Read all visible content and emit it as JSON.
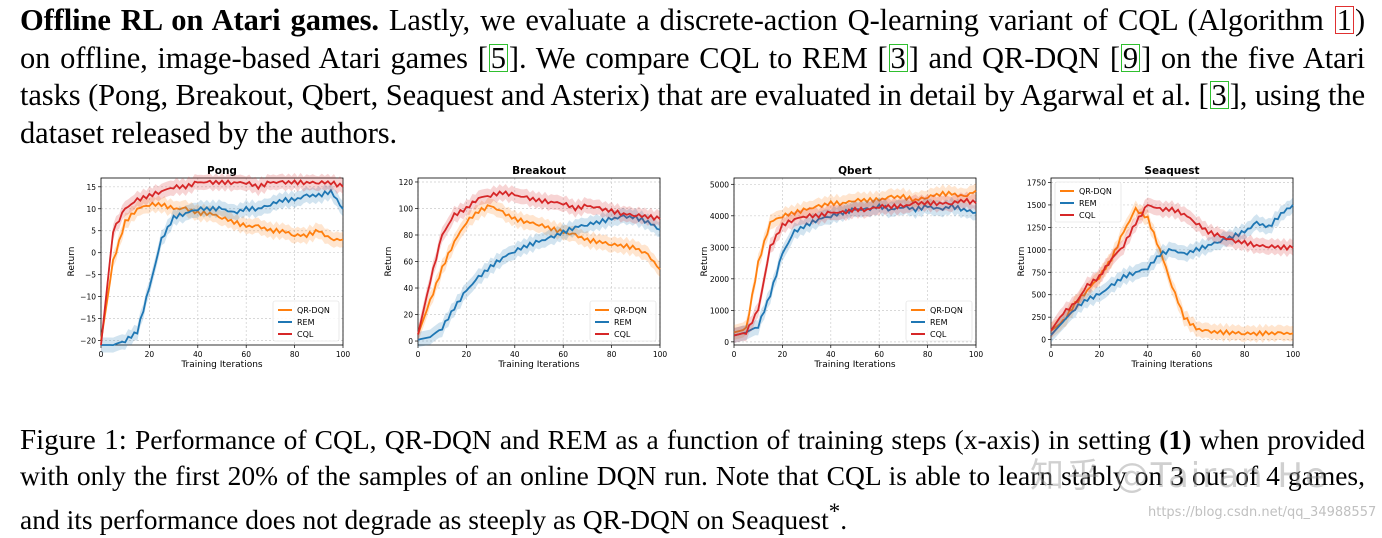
{
  "paragraph": {
    "heading": "Offline RL on Atari games.",
    "s1": "Lastly, we evaluate a discrete-action Q-learning variant of CQL (Algorithm",
    "c1": "1",
    "s2": ") on offline, image-based Atari games [",
    "c2": "5",
    "s3": "]. We compare CQL to REM [",
    "c3": "3",
    "s4": "] and QR-DQN [",
    "c4": "9",
    "s5": "] on the five Atari tasks (Pong, Breakout, Qbert, Seaquest and Asterix) that are evaluated in detail by Agarwal et al. [",
    "c5": "3",
    "s6": "], using the dataset released by the authors."
  },
  "caption": {
    "label": "Figure 1:",
    "t1": "Performance of CQL, QR-DQN and REM as a function of training steps (x-axis) in setting",
    "setting": "(1)",
    "t2": "when provided with only the first 20% of the samples of an online DQN run. Note that CQL is able to learn stably on 3 out of 4 games, and its performance does not degrade as steeply as QR-DQN on Seaquest",
    "star": "*",
    "t3": "."
  },
  "watermark": {
    "main": "知乎 @Tairan He",
    "url": "https://blog.csdn.net/qq_34988557"
  },
  "colors": {
    "QR-DQN": "#ff7f0e",
    "REM": "#1f77b4",
    "CQL": "#d62728"
  },
  "chart_data": [
    {
      "type": "line",
      "title": "Pong",
      "xlabel": "Training Iterations",
      "ylabel": "Return",
      "xlim": [
        0,
        100
      ],
      "ylim": [
        -21,
        17
      ],
      "xticks": [
        0,
        20,
        40,
        60,
        80,
        100
      ],
      "yticks": [
        -20,
        -15,
        -10,
        -5,
        0,
        5,
        10,
        15
      ],
      "legend": "bottom-right",
      "grid": true,
      "x": [
        0,
        5,
        10,
        15,
        20,
        25,
        30,
        35,
        40,
        45,
        50,
        55,
        60,
        65,
        70,
        75,
        80,
        85,
        90,
        95,
        100
      ],
      "series": [
        {
          "name": "QR-DQN",
          "values": [
            -20,
            -2,
            7,
            10,
            11,
            11,
            10,
            10,
            9,
            9,
            8,
            7,
            6,
            6,
            5,
            5,
            4,
            4,
            5,
            3,
            3
          ]
        },
        {
          "name": "REM",
          "values": [
            -21,
            -21,
            -20,
            -18,
            -8,
            3,
            8,
            9,
            10,
            10,
            10,
            9,
            10,
            10,
            11,
            12,
            12,
            13,
            13,
            14,
            10
          ]
        },
        {
          "name": "CQL",
          "values": [
            -21,
            5,
            10,
            12,
            13,
            14,
            15,
            15,
            16,
            16,
            16,
            16,
            16,
            15,
            16,
            16,
            16,
            16,
            16,
            16,
            15
          ]
        }
      ]
    },
    {
      "type": "line",
      "title": "Breakout",
      "xlabel": "Training Iterations",
      "ylabel": "Return",
      "xlim": [
        0,
        100
      ],
      "ylim": [
        -3,
        123
      ],
      "xticks": [
        0,
        20,
        40,
        60,
        80,
        100
      ],
      "yticks": [
        0,
        20,
        40,
        60,
        80,
        100,
        120
      ],
      "legend": "bottom-right",
      "grid": true,
      "x": [
        0,
        5,
        10,
        15,
        20,
        25,
        30,
        35,
        40,
        45,
        50,
        55,
        60,
        65,
        70,
        75,
        80,
        85,
        90,
        95,
        100
      ],
      "series": [
        {
          "name": "QR-DQN",
          "values": [
            5,
            30,
            55,
            75,
            90,
            98,
            102,
            97,
            92,
            90,
            88,
            85,
            82,
            80,
            76,
            75,
            73,
            72,
            70,
            65,
            54
          ]
        },
        {
          "name": "REM",
          "values": [
            1,
            3,
            10,
            25,
            38,
            48,
            56,
            63,
            68,
            72,
            75,
            78,
            82,
            86,
            88,
            90,
            92,
            94,
            93,
            90,
            84
          ]
        },
        {
          "name": "CQL",
          "values": [
            5,
            45,
            80,
            95,
            100,
            108,
            110,
            112,
            110,
            108,
            106,
            105,
            104,
            100,
            102,
            100,
            98,
            96,
            95,
            94,
            92
          ]
        }
      ]
    },
    {
      "type": "line",
      "title": "Qbert",
      "xlabel": "Training Iterations",
      "ylabel": "Return",
      "xlim": [
        0,
        100
      ],
      "ylim": [
        -100,
        5200
      ],
      "xticks": [
        0,
        20,
        40,
        60,
        80,
        100
      ],
      "yticks": [
        0,
        1000,
        2000,
        3000,
        4000,
        5000
      ],
      "legend": "bottom-right",
      "grid": true,
      "x": [
        0,
        5,
        10,
        15,
        20,
        25,
        30,
        35,
        40,
        45,
        50,
        55,
        60,
        65,
        70,
        75,
        80,
        85,
        90,
        95,
        100
      ],
      "series": [
        {
          "name": "QR-DQN",
          "values": [
            300,
            400,
            2500,
            3800,
            4000,
            4100,
            4200,
            4300,
            4400,
            4400,
            4500,
            4500,
            4500,
            4600,
            4600,
            4500,
            4600,
            4700,
            4700,
            4600,
            4800
          ]
        },
        {
          "name": "REM",
          "values": [
            200,
            300,
            500,
            1500,
            2800,
            3500,
            3700,
            3900,
            4000,
            4100,
            4200,
            4200,
            4300,
            4200,
            4300,
            4200,
            4300,
            4200,
            4300,
            4200,
            4100
          ]
        },
        {
          "name": "CQL",
          "values": [
            200,
            300,
            1000,
            3000,
            3700,
            3900,
            4000,
            4000,
            4100,
            4100,
            4200,
            4200,
            4300,
            4300,
            4300,
            4400,
            4400,
            4400,
            4400,
            4500,
            4400
          ]
        }
      ]
    },
    {
      "type": "line",
      "title": "Seaquest",
      "xlabel": "Training Iterations",
      "ylabel": "Return",
      "xlim": [
        0,
        100
      ],
      "ylim": [
        -60,
        1800
      ],
      "xticks": [
        0,
        20,
        40,
        60,
        80,
        100
      ],
      "yticks": [
        0,
        250,
        500,
        750,
        1000,
        1250,
        1500,
        1750
      ],
      "legend": "top-left",
      "grid": true,
      "x": [
        0,
        5,
        10,
        15,
        20,
        25,
        30,
        35,
        40,
        45,
        50,
        55,
        60,
        65,
        70,
        75,
        80,
        85,
        90,
        95,
        100
      ],
      "series": [
        {
          "name": "QR-DQN",
          "values": [
            100,
            200,
            400,
            550,
            700,
            900,
            1200,
            1450,
            1350,
            1000,
            600,
            250,
            120,
            90,
            80,
            80,
            70,
            70,
            70,
            70,
            70
          ]
        },
        {
          "name": "REM",
          "values": [
            50,
            200,
            350,
            450,
            500,
            600,
            700,
            750,
            800,
            950,
            1000,
            950,
            1000,
            1050,
            1100,
            1150,
            1200,
            1300,
            1250,
            1400,
            1500
          ]
        },
        {
          "name": "CQL",
          "values": [
            100,
            300,
            400,
            600,
            700,
            900,
            1050,
            1300,
            1500,
            1450,
            1450,
            1400,
            1300,
            1200,
            1150,
            1100,
            1080,
            1050,
            1040,
            1030,
            1020
          ]
        }
      ]
    }
  ]
}
